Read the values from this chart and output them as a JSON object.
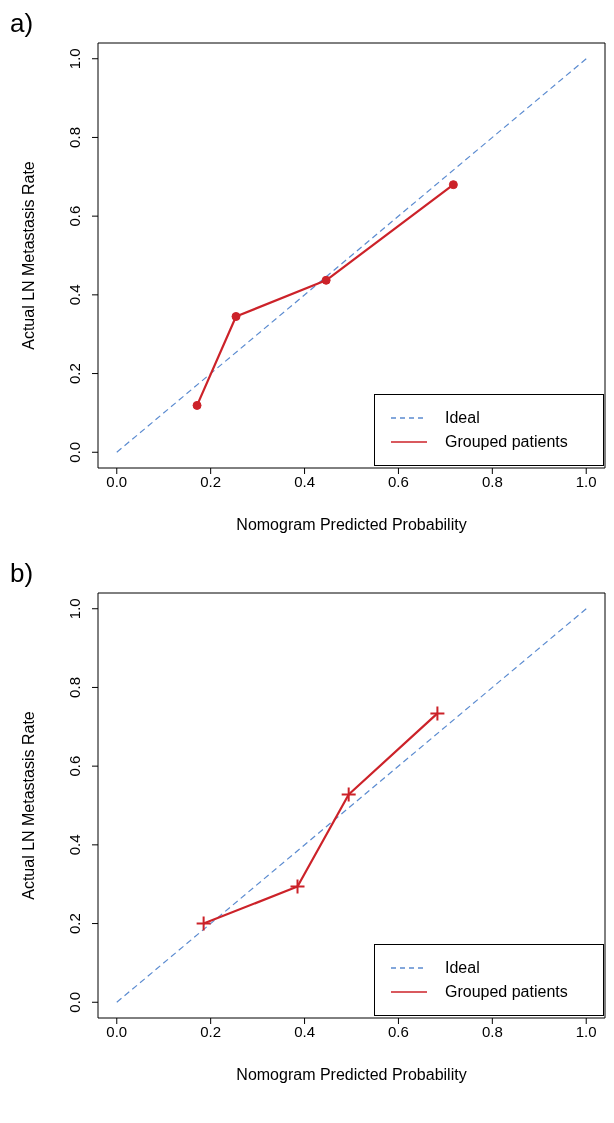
{
  "chart_data": [
    {
      "type": "line",
      "title": "a)",
      "xlabel": "Nomogram Predicted Probability",
      "ylabel": "Actual LN Metastasis Rate",
      "xlim": [
        -0.04,
        1.04
      ],
      "ylim": [
        -0.04,
        1.04
      ],
      "xticks": [
        {
          "value": 0,
          "label": "0.0"
        },
        {
          "value": 0.2,
          "label": "0.2"
        },
        {
          "value": 0.4,
          "label": "0.4"
        },
        {
          "value": 0.6,
          "label": "0.6"
        },
        {
          "value": 0.8,
          "label": "0.8"
        },
        {
          "value": 1,
          "label": "1.0"
        }
      ],
      "yticks": [
        {
          "value": 0,
          "label": "0.0"
        },
        {
          "value": 0.2,
          "label": "0.2"
        },
        {
          "value": 0.4,
          "label": "0.4"
        },
        {
          "value": 0.6,
          "label": "0.6"
        },
        {
          "value": 0.8,
          "label": "0.8"
        },
        {
          "value": 1,
          "label": "1.0"
        }
      ],
      "grid": false,
      "legend": "bottom right",
      "series": [
        {
          "name": "Ideal",
          "color": "#5b8bd0",
          "x": [
            0,
            1
          ],
          "values": [
            0,
            1
          ],
          "line_style": "dashed",
          "marker": "none"
        },
        {
          "name": "Grouped patients",
          "color": "#cc2229",
          "x": [
            0.171,
            0.254,
            0.446,
            0.717
          ],
          "values": [
            0.119,
            0.345,
            0.437,
            0.68
          ],
          "line_style": "solid",
          "marker": "circle"
        }
      ]
    },
    {
      "type": "line",
      "title": "b)",
      "xlabel": "Nomogram Predicted Probability",
      "ylabel": "Actual LN Metastasis Rate",
      "xlim": [
        -0.04,
        1.04
      ],
      "ylim": [
        -0.04,
        1.04
      ],
      "xticks": [
        {
          "value": 0,
          "label": "0.0"
        },
        {
          "value": 0.2,
          "label": "0.2"
        },
        {
          "value": 0.4,
          "label": "0.4"
        },
        {
          "value": 0.6,
          "label": "0.6"
        },
        {
          "value": 0.8,
          "label": "0.8"
        },
        {
          "value": 1,
          "label": "1.0"
        }
      ],
      "yticks": [
        {
          "value": 0,
          "label": "0.0"
        },
        {
          "value": 0.2,
          "label": "0.2"
        },
        {
          "value": 0.4,
          "label": "0.4"
        },
        {
          "value": 0.6,
          "label": "0.6"
        },
        {
          "value": 0.8,
          "label": "0.8"
        },
        {
          "value": 1,
          "label": "1.0"
        }
      ],
      "grid": false,
      "legend": "bottom right",
      "series": [
        {
          "name": "Ideal",
          "color": "#5b8bd0",
          "x": [
            0,
            1
          ],
          "values": [
            0,
            1
          ],
          "line_style": "dashed",
          "marker": "none"
        },
        {
          "name": "Grouped patients",
          "color": "#cc2229",
          "x": [
            0.185,
            0.385,
            0.494,
            0.683
          ],
          "values": [
            0.2,
            0.294,
            0.528,
            0.734
          ],
          "line_style": "solid",
          "marker": "cross"
        }
      ]
    }
  ]
}
